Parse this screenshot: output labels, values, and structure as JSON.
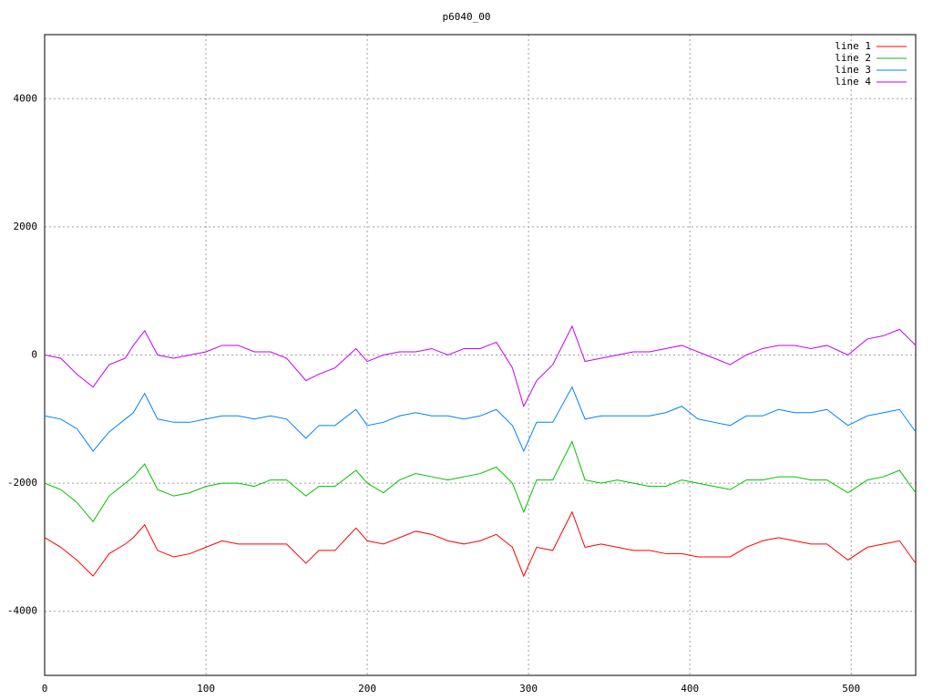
{
  "chart_data": {
    "type": "line",
    "title": "p6040_00",
    "x": [
      0,
      10,
      20,
      30,
      40,
      50,
      55,
      62,
      70,
      80,
      90,
      100,
      110,
      120,
      130,
      140,
      150,
      162,
      170,
      180,
      193,
      200,
      210,
      220,
      230,
      240,
      250,
      260,
      270,
      280,
      290,
      297,
      305,
      315,
      327,
      335,
      345,
      355,
      365,
      375,
      385,
      395,
      405,
      415,
      425,
      435,
      445,
      455,
      465,
      475,
      485,
      498,
      510,
      520,
      530,
      540
    ],
    "series": [
      {
        "name": "line 1",
        "color": "#ff0000",
        "values": [
          -2850,
          -3000,
          -3200,
          -3450,
          -3100,
          -2950,
          -2850,
          -2650,
          -3050,
          -3150,
          -3100,
          -3000,
          -2900,
          -2950,
          -2950,
          -2950,
          -2950,
          -3250,
          -3050,
          -3050,
          -2700,
          -2900,
          -2950,
          -2850,
          -2750,
          -2800,
          -2900,
          -2950,
          -2900,
          -2800,
          -3000,
          -3450,
          -3000,
          -3050,
          -2450,
          -3000,
          -2950,
          -3000,
          -3050,
          -3050,
          -3100,
          -3100,
          -3150,
          -3150,
          -3150,
          -3000,
          -2900,
          -2850,
          -2900,
          -2950,
          -2950,
          -3200,
          -3000,
          -2950,
          -2900,
          -3250
        ]
      },
      {
        "name": "line 2",
        "color": "#00c000",
        "values": [
          -2000,
          -2100,
          -2300,
          -2600,
          -2200,
          -2000,
          -1900,
          -1700,
          -2100,
          -2200,
          -2150,
          -2050,
          -2000,
          -2000,
          -2050,
          -1950,
          -1950,
          -2200,
          -2050,
          -2050,
          -1800,
          -2000,
          -2150,
          -1950,
          -1850,
          -1900,
          -1950,
          -1900,
          -1850,
          -1750,
          -2000,
          -2450,
          -1950,
          -1950,
          -1350,
          -1950,
          -2000,
          -1950,
          -2000,
          -2050,
          -2050,
          -1950,
          -2000,
          -2050,
          -2100,
          -1950,
          -1950,
          -1900,
          -1900,
          -1950,
          -1950,
          -2150,
          -1950,
          -1900,
          -1800,
          -2150
        ]
      },
      {
        "name": "line 3",
        "color": "#0080ff",
        "values": [
          -950,
          -1000,
          -1150,
          -1500,
          -1200,
          -1000,
          -900,
          -600,
          -1000,
          -1050,
          -1050,
          -1000,
          -950,
          -950,
          -1000,
          -950,
          -1000,
          -1300,
          -1100,
          -1100,
          -850,
          -1100,
          -1050,
          -950,
          -900,
          -950,
          -950,
          -1000,
          -950,
          -850,
          -1100,
          -1500,
          -1050,
          -1050,
          -500,
          -1000,
          -950,
          -950,
          -950,
          -950,
          -900,
          -800,
          -1000,
          -1050,
          -1100,
          -950,
          -950,
          -850,
          -900,
          -900,
          -850,
          -1100,
          -950,
          -900,
          -850,
          -1200
        ]
      },
      {
        "name": "line 4",
        "color": "#c000ff",
        "values": [
          0,
          -50,
          -300,
          -500,
          -150,
          -50,
          150,
          380,
          0,
          -50,
          0,
          50,
          150,
          150,
          50,
          50,
          -50,
          -400,
          -300,
          -200,
          100,
          -100,
          0,
          50,
          50,
          100,
          0,
          100,
          100,
          200,
          -200,
          -800,
          -400,
          -150,
          450,
          -100,
          -50,
          0,
          50,
          50,
          100,
          150,
          50,
          -50,
          -150,
          0,
          100,
          150,
          150,
          100,
          150,
          0,
          250,
          300,
          400,
          150
        ]
      }
    ],
    "xlim": [
      0,
      540
    ],
    "ylim": [
      -5000,
      5000
    ],
    "xticks": [
      0,
      100,
      200,
      300,
      400,
      500
    ],
    "yticks": [
      -4000,
      -2000,
      0,
      2000,
      4000
    ],
    "grid": true,
    "legend": "top-right"
  }
}
